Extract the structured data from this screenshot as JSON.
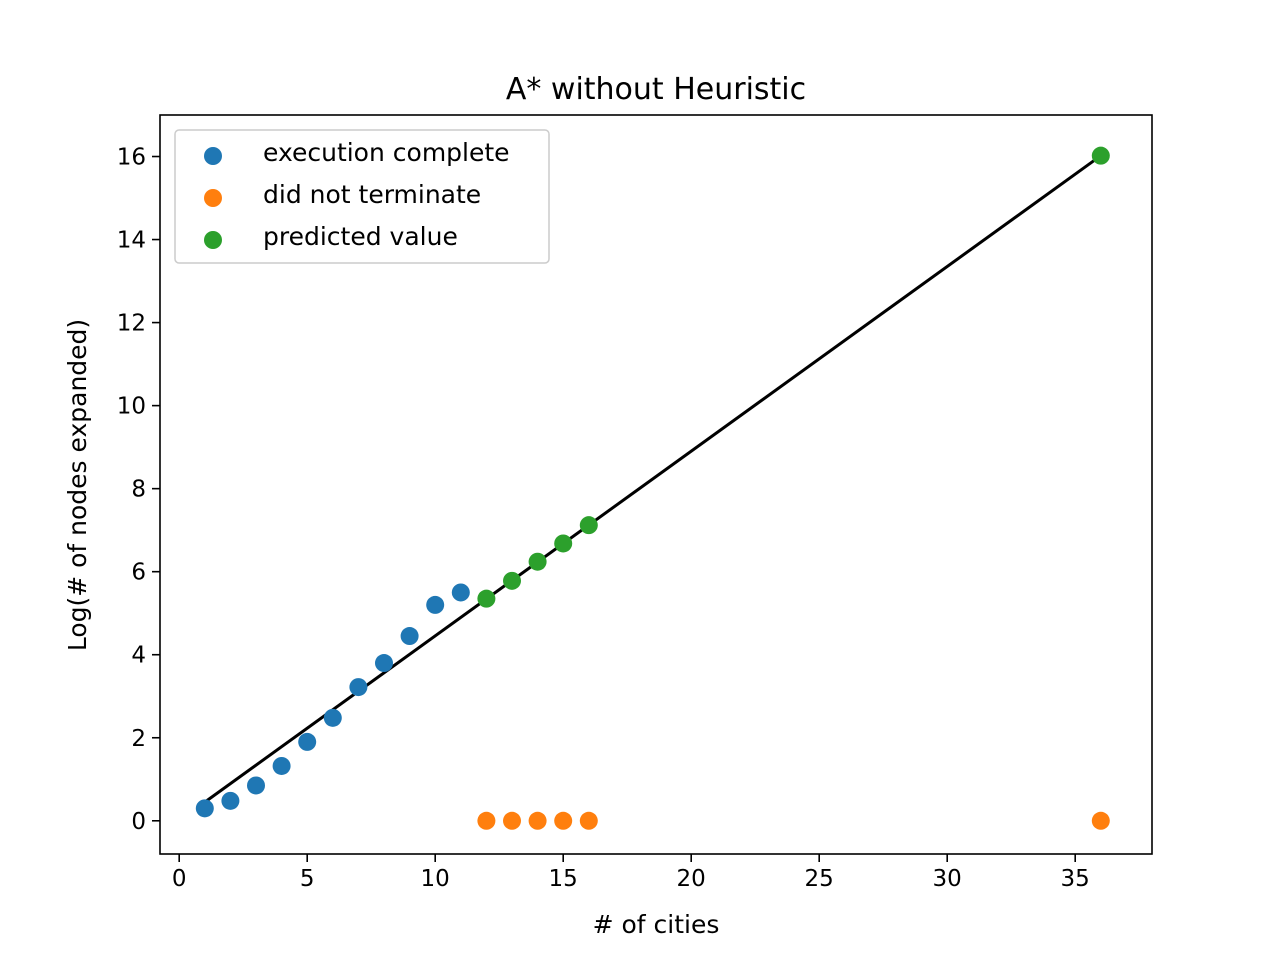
{
  "chart_data": {
    "type": "scatter",
    "title": "A* without Heuristic",
    "xlabel": "# of cities",
    "ylabel": "Log(# of nodes expanded)",
    "xlim": [
      -0.75,
      38
    ],
    "ylim": [
      -0.8,
      17
    ],
    "xticks": [
      0,
      5,
      10,
      15,
      20,
      25,
      30,
      35
    ],
    "yticks": [
      0,
      2,
      4,
      6,
      8,
      10,
      12,
      14,
      16
    ],
    "grid": false,
    "legend_position": "top-left",
    "series": [
      {
        "name": "execution complete",
        "color": "#1f77b4",
        "x": [
          1,
          2,
          3,
          4,
          5,
          6,
          7,
          8,
          9,
          10,
          11
        ],
        "y": [
          0.3,
          0.48,
          0.85,
          1.32,
          1.9,
          2.48,
          3.22,
          3.8,
          4.45,
          5.2,
          5.5
        ]
      },
      {
        "name": "did not terminate",
        "color": "#ff7f0e",
        "x": [
          12,
          13,
          14,
          15,
          16,
          36
        ],
        "y": [
          0,
          0,
          0,
          0,
          0,
          0
        ]
      },
      {
        "name": "predicted value",
        "color": "#2ca02c",
        "x": [
          12,
          13,
          14,
          15,
          16,
          36
        ],
        "y": [
          5.35,
          5.78,
          6.24,
          6.68,
          7.12,
          16.02
        ]
      }
    ],
    "fit_line": {
      "color": "#000000",
      "x": [
        1,
        36
      ],
      "y": [
        0.45,
        16.02
      ]
    }
  }
}
